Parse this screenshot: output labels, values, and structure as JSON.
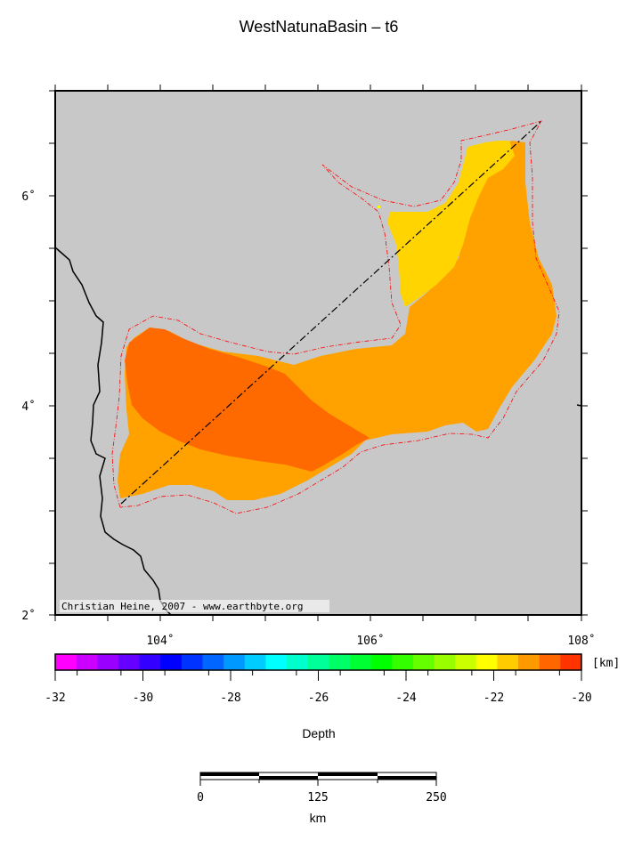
{
  "title": "WestNatunaBasin – t6",
  "credit": "Christian Heine, 2007 - www.earthbyte.org",
  "map": {
    "lon_range": [
      103,
      108
    ],
    "lat_range": [
      2,
      7
    ],
    "lon_labels": [
      "104˚",
      "106˚",
      "108˚"
    ],
    "lat_labels": [
      "6˚",
      "4˚",
      "2˚"
    ],
    "land_color": "#c8c8c8",
    "outline_color": "#ff0000",
    "zones": [
      {
        "name": "shallow",
        "color": "#ffd400"
      },
      {
        "name": "medium",
        "color": "#ffa200"
      },
      {
        "name": "deep",
        "color": "#ff6a00"
      }
    ]
  },
  "colorbar": {
    "unit": "[km]",
    "title": "Depth",
    "tick_labels": [
      "-32",
      "-30",
      "-28",
      "-26",
      "-24",
      "-22",
      "-20"
    ],
    "colors": [
      "#ff00ff",
      "#cc00ff",
      "#9900ff",
      "#6600ff",
      "#3300ff",
      "#0000ff",
      "#0033ff",
      "#0066ff",
      "#0099ff",
      "#00ccff",
      "#00ffff",
      "#00ffcc",
      "#00ff99",
      "#00ff66",
      "#00ff33",
      "#00ff00",
      "#33ff00",
      "#66ff00",
      "#99ff00",
      "#ccff00",
      "#ffff00",
      "#ffcc00",
      "#ff9900",
      "#ff6600",
      "#ff3300"
    ]
  },
  "scalebar": {
    "labels": [
      "0",
      "125",
      "250"
    ],
    "unit": "km"
  }
}
